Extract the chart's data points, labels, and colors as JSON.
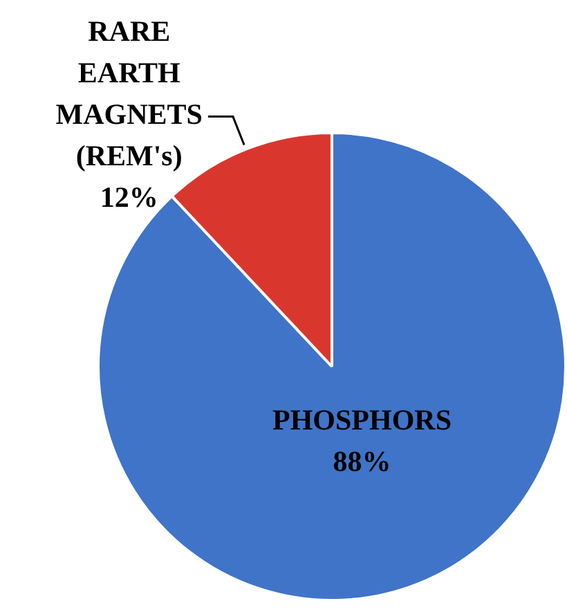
{
  "chart_data": {
    "type": "pie",
    "categories": [
      "PHOSPHORS",
      "RARE EARTH MAGNETS (REM's)"
    ],
    "values": [
      88,
      12
    ],
    "colors": [
      "#3f74c8",
      "#d9372e"
    ],
    "value_labels": [
      "88%",
      "12%"
    ]
  }
}
